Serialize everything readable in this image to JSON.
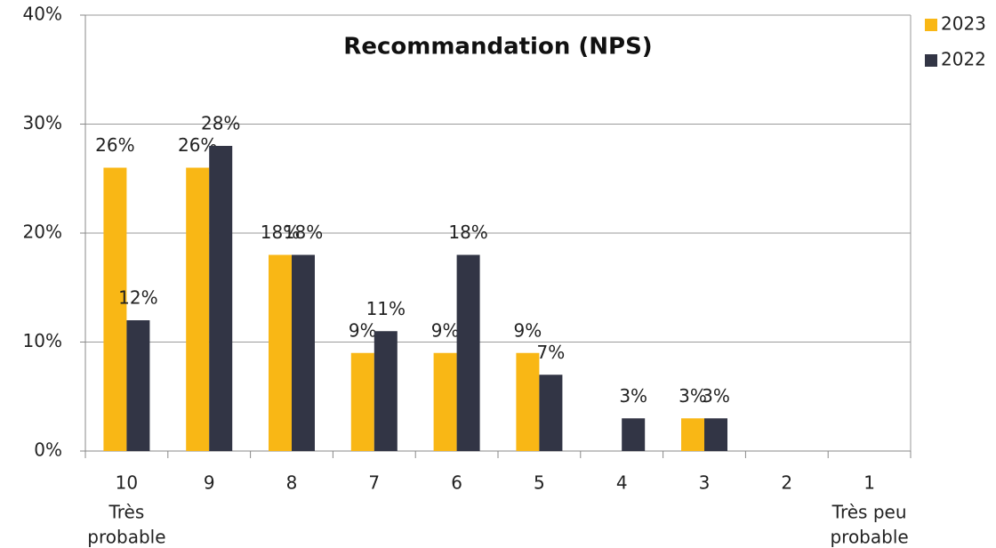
{
  "chart_data": {
    "type": "bar",
    "title": "Recommandation (NPS)",
    "categories": [
      "10",
      "9",
      "8",
      "7",
      "6",
      "5",
      "4",
      "3",
      "2",
      "1"
    ],
    "x_end_labels": [
      [
        "Très",
        "probable"
      ],
      [
        "Très peu",
        "probable"
      ]
    ],
    "series": [
      {
        "name": "2023",
        "color": "#f9b715",
        "values": [
          26,
          26,
          18,
          9,
          9,
          9,
          null,
          3,
          null,
          null
        ],
        "value_labels": [
          "26%",
          "26%",
          "18%",
          "9%",
          "9%",
          "9%",
          null,
          "3%",
          null,
          null
        ]
      },
      {
        "name": "2022",
        "color": "#323545",
        "values": [
          12,
          28,
          18,
          11,
          18,
          7,
          3,
          3,
          null,
          null
        ],
        "value_labels": [
          "12%",
          "28%",
          "18%",
          "11%",
          "18%",
          "7%",
          "3%",
          "3%",
          null,
          null
        ]
      }
    ],
    "ylim": [
      0,
      40
    ],
    "yticks": [
      {
        "value": 0,
        "label": "0%"
      },
      {
        "value": 10,
        "label": "10%"
      },
      {
        "value": 20,
        "label": "20%"
      },
      {
        "value": 30,
        "label": "30%"
      },
      {
        "value": 40,
        "label": "40%"
      }
    ],
    "grid": true,
    "legend": "right"
  }
}
